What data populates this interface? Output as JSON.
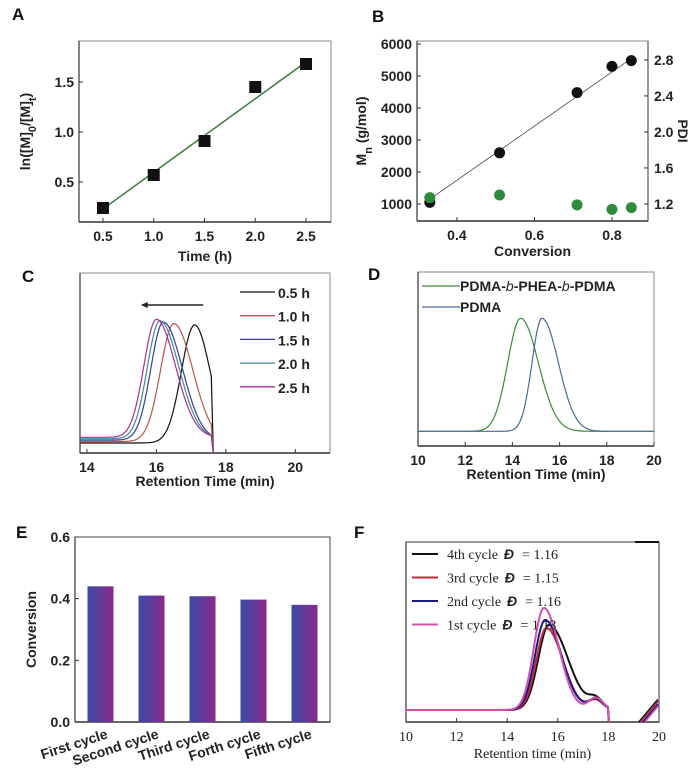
{
  "chart_data": [
    {
      "panel": "A",
      "type": "scatter",
      "xlabel": "Time (h)",
      "ylabel_parts": [
        "ln([M]",
        "0",
        "/[M]",
        "t",
        ")"
      ],
      "xlim": [
        0.264,
        2.746
      ],
      "ylim": [
        0.1,
        1.91
      ],
      "xticks": [
        0.5,
        1.0,
        1.5,
        2.0,
        2.5
      ],
      "xtick_labels": [
        "0.5",
        "1.0",
        "1.5",
        "2.0",
        "2.5"
      ],
      "yticks": [
        0.5,
        1.0,
        1.5
      ],
      "ytick_labels": [
        "0.5",
        "1.0",
        "1.5"
      ],
      "x": [
        0.5,
        1.0,
        1.5,
        2.0,
        2.5
      ],
      "y": [
        0.24,
        0.57,
        0.91,
        1.45,
        1.68
      ],
      "fit": [
        [
          0.5,
          0.23
        ],
        [
          2.5,
          1.7
        ]
      ],
      "colors": {
        "points": "#111111",
        "fit": "#3f7a3f"
      }
    },
    {
      "panel": "B",
      "type": "scatter",
      "xlabel": "Conversion",
      "ylabel_parts": [
        "M",
        "n",
        " (g/mol)"
      ],
      "y2label": "PDI",
      "xlim": [
        0.297,
        0.893
      ],
      "ylim": [
        469,
        6094
      ],
      "y2lim": [
        1.011,
        3.01
      ],
      "xticks": [
        0.4,
        0.6,
        0.8
      ],
      "xtick_labels": [
        "0.4",
        "0.6",
        "0.8"
      ],
      "yticks": [
        1000,
        2000,
        3000,
        4000,
        5000,
        6000
      ],
      "ytick_labels": [
        "1000",
        "2000",
        "3000",
        "4000",
        "5000",
        "6000"
      ],
      "y2ticks": [
        1.2,
        1.6,
        2.0,
        2.4,
        2.8
      ],
      "y2tick_labels": [
        "1.2",
        "1.6",
        "2.0",
        "2.4",
        "2.8"
      ],
      "series": [
        {
          "name": "Mn",
          "x": [
            0.33,
            0.51,
            0.71,
            0.8,
            0.85
          ],
          "y": [
            1050,
            2600,
            4480,
            5300,
            5480
          ],
          "color": "#111111"
        },
        {
          "name": "PDI",
          "axis": "right",
          "x": [
            0.33,
            0.51,
            0.71,
            0.8,
            0.85
          ],
          "y": [
            1.27,
            1.3,
            1.19,
            1.14,
            1.16
          ],
          "color": "#2e8b3a"
        }
      ],
      "fit": [
        [
          0.33,
          1150
        ],
        [
          0.85,
          5550
        ]
      ]
    },
    {
      "panel": "C",
      "type": "line",
      "xlabel": "Retention Time (min)",
      "xlim": [
        13.8,
        21.0
      ],
      "ylim": [
        -0.085,
        1.44
      ],
      "xticks": [
        14,
        16,
        18,
        20
      ],
      "xtick_labels": [
        "14",
        "16",
        "18",
        "20"
      ],
      "cutoff": 17.6,
      "arrow": {
        "from": 17.35,
        "to": 15.55
      },
      "series": [
        {
          "name": "0.5 h",
          "peak": 17.1,
          "sl": 0.38,
          "sr": 0.45,
          "color": "#111111"
        },
        {
          "name": "1.0 h",
          "peak": 16.5,
          "sl": 0.38,
          "sr": 0.55,
          "color": "#b5574f"
        },
        {
          "name": "1.5 h",
          "peak": 16.2,
          "sl": 0.36,
          "sr": 0.55,
          "color": "#3a3a9a"
        },
        {
          "name": "2.0 h",
          "peak": 16.1,
          "sl": 0.36,
          "sr": 0.55,
          "color": "#3f8a9a"
        },
        {
          "name": "2.5 h",
          "peak": 16.0,
          "sl": 0.36,
          "sr": 0.55,
          "color": "#a8308c"
        }
      ]
    },
    {
      "panel": "D",
      "type": "line",
      "xlabel": "Retention Time (min)",
      "xlim": [
        10,
        20
      ],
      "ylim": [
        -0.13,
        1.41
      ],
      "xticks": [
        10,
        12,
        14,
        16,
        18,
        20
      ],
      "xtick_labels": [
        "10",
        "12",
        "14",
        "16",
        "18",
        "20"
      ],
      "series": [
        {
          "name_parts": [
            "PDMA-",
            "b",
            "-PHEA-",
            "b",
            "-PDMA"
          ],
          "peak": 14.35,
          "sl": 0.55,
          "sr": 0.75,
          "color": "#3a8a3a",
          "text_color": "#2e8b3a"
        },
        {
          "name_parts": [
            "PDMA"
          ],
          "peak": 15.25,
          "sl": 0.42,
          "sr": 0.7,
          "color": "#4a6a9a",
          "text_color": "#3a3aa0"
        }
      ]
    },
    {
      "panel": "E",
      "type": "bar",
      "ylabel": "Conversion",
      "ylim": [
        0,
        0.6
      ],
      "yticks": [
        0.0,
        0.2,
        0.4,
        0.6
      ],
      "ytick_labels": [
        "0.0",
        "0.2",
        "0.4",
        "0.6"
      ],
      "categories": [
        "First cycle",
        "Second cycle",
        "Third cycle",
        "Forth cycle",
        "Fifth cycle"
      ],
      "values": [
        0.44,
        0.41,
        0.408,
        0.397,
        0.38
      ],
      "colors": {
        "left": "#3a4aa8",
        "right": "#8a2a8a"
      }
    },
    {
      "panel": "F",
      "type": "line",
      "xlabel": "Retention time (min)",
      "xlim": [
        10,
        20
      ],
      "ylim": [
        -0.12,
        1.68
      ],
      "xticks": [
        10,
        12,
        14,
        16,
        18,
        20
      ],
      "xtick_labels": [
        "10",
        "12",
        "14",
        "16",
        "18",
        "20"
      ],
      "series": [
        {
          "name": "4th cycle",
          "dispersity_symbol": "Đ",
          "eq": "= 1.16",
          "peak": 15.65,
          "amp": 0.85,
          "sl": 0.42,
          "sr": 0.75,
          "color": "#111111"
        },
        {
          "name": "3rd cycle",
          "dispersity_symbol": "Đ",
          "eq": "= 1.15",
          "peak": 15.55,
          "amp": 0.82,
          "sl": 0.4,
          "sr": 0.65,
          "color": "#c8283c"
        },
        {
          "name": "2nd cycle",
          "dispersity_symbol": "Đ",
          "eq": "= 1.16",
          "peak": 15.5,
          "amp": 0.9,
          "sl": 0.4,
          "sr": 0.65,
          "color": "#1a1a80"
        },
        {
          "name": "1st cycle",
          "dispersity_symbol": "Đ",
          "eq": "= 1.13",
          "peak": 15.45,
          "amp": 1.02,
          "sl": 0.4,
          "sr": 0.6,
          "color": "#d050b0"
        }
      ]
    }
  ]
}
